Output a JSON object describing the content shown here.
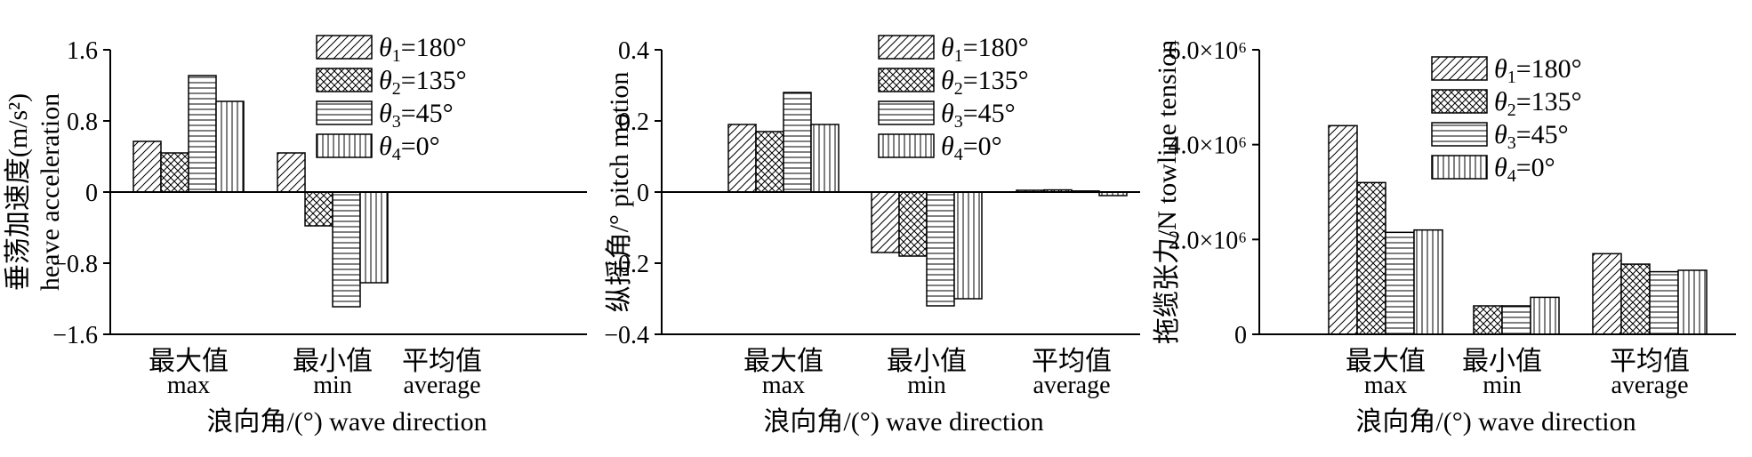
{
  "chart_data": [
    {
      "type": "bar",
      "ylabel_cn": "垂荡加速度(m/s²)",
      "ylabel_en": "heave acceleration",
      "xlabel": "浪向角/(°) wave direction",
      "categories": [
        {
          "cn": "最大值",
          "en": "max"
        },
        {
          "cn": "最小值",
          "en": "min"
        },
        {
          "cn": "平均值",
          "en": "average"
        }
      ],
      "ylim": [
        -1.6,
        1.6
      ],
      "yticks": [
        1.6,
        0.8,
        0,
        -0.8,
        -1.6
      ],
      "ytick_labels": [
        "1.6",
        "0.8",
        "0",
        "−0.8",
        "−1.6"
      ],
      "legend_position": "top-right",
      "series": [
        {
          "name": "θ1=180°",
          "name_sym": "θ",
          "name_sub": "1",
          "name_rest": "=180°",
          "pattern": "diag",
          "values": [
            0.57,
            0.44,
            0.0
          ]
        },
        {
          "name": "θ2=135°",
          "name_sym": "θ",
          "name_sub": "2",
          "name_rest": "=135°",
          "pattern": "cross",
          "values": [
            0.44,
            -0.38,
            0.0
          ]
        },
        {
          "name": "θ3=45°",
          "name_sym": "θ",
          "name_sub": "3",
          "name_rest": "=45°",
          "pattern": "hline",
          "values": [
            1.31,
            -1.29,
            0.0
          ]
        },
        {
          "name": "θ4=0°",
          "name_sym": "θ",
          "name_sub": "4",
          "name_rest": "=0°",
          "pattern": "vline",
          "values": [
            1.02,
            -1.02,
            0.0
          ]
        }
      ]
    },
    {
      "type": "bar",
      "ylabel_cn": "纵摇角/°",
      "ylabel_en": "pitch motion",
      "xlabel": "浪向角/(°) wave direction",
      "categories": [
        {
          "cn": "最大值",
          "en": "max"
        },
        {
          "cn": "最小值",
          "en": "min"
        },
        {
          "cn": "平均值",
          "en": "average"
        }
      ],
      "ylim": [
        -0.4,
        0.4
      ],
      "yticks": [
        0.4,
        0.2,
        0,
        -0.2,
        -0.4
      ],
      "ytick_labels": [
        "0.4",
        "0.2",
        "0",
        "−0.2",
        "−0.4"
      ],
      "legend_position": "top-right",
      "series": [
        {
          "name": "θ1=180°",
          "name_sym": "θ",
          "name_sub": "1",
          "name_rest": "=180°",
          "pattern": "diag",
          "values": [
            0.19,
            -0.17,
            0.005
          ]
        },
        {
          "name": "θ2=135°",
          "name_sym": "θ",
          "name_sub": "2",
          "name_rest": "=135°",
          "pattern": "cross",
          "values": [
            0.17,
            -0.18,
            0.006
          ]
        },
        {
          "name": "θ3=45°",
          "name_sym": "θ",
          "name_sub": "3",
          "name_rest": "=45°",
          "pattern": "hline",
          "values": [
            0.28,
            -0.32,
            0.003
          ]
        },
        {
          "name": "θ4=0°",
          "name_sym": "θ",
          "name_sub": "4",
          "name_rest": "=0°",
          "pattern": "vline",
          "values": [
            0.19,
            -0.3,
            -0.01
          ]
        }
      ]
    },
    {
      "type": "bar",
      "ylabel_cn": "拖缆张力/N",
      "ylabel_en": "towline tension",
      "xlabel": "浪向角/(°) wave direction",
      "categories": [
        {
          "cn": "最大值",
          "en": "max"
        },
        {
          "cn": "最小值",
          "en": "min"
        },
        {
          "cn": "平均值",
          "en": "average"
        }
      ],
      "ylim": [
        0,
        6000000
      ],
      "yticks": [
        6000000,
        4000000,
        2000000,
        0
      ],
      "ytick_labels": [
        "6.0×10⁶",
        "4.0×10⁶",
        "2.0×10⁶",
        "0"
      ],
      "legend_position": "top-right",
      "series": [
        {
          "name": "θ1=180°",
          "name_sym": "θ",
          "name_sub": "1",
          "name_rest": "=180°",
          "pattern": "diag",
          "values": [
            4400000,
            0,
            1700000
          ]
        },
        {
          "name": "θ2=135°",
          "name_sym": "θ",
          "name_sub": "2",
          "name_rest": "=135°",
          "pattern": "cross",
          "values": [
            3200000,
            600000,
            1480000
          ]
        },
        {
          "name": "θ3=45°",
          "name_sym": "θ",
          "name_sub": "3",
          "name_rest": "=45°",
          "pattern": "hline",
          "values": [
            2150000,
            600000,
            1320000
          ]
        },
        {
          "name": "θ4=0°",
          "name_sym": "θ",
          "name_sub": "4",
          "name_rest": "=0°",
          "pattern": "vline",
          "values": [
            2200000,
            780000,
            1350000
          ]
        }
      ]
    }
  ]
}
